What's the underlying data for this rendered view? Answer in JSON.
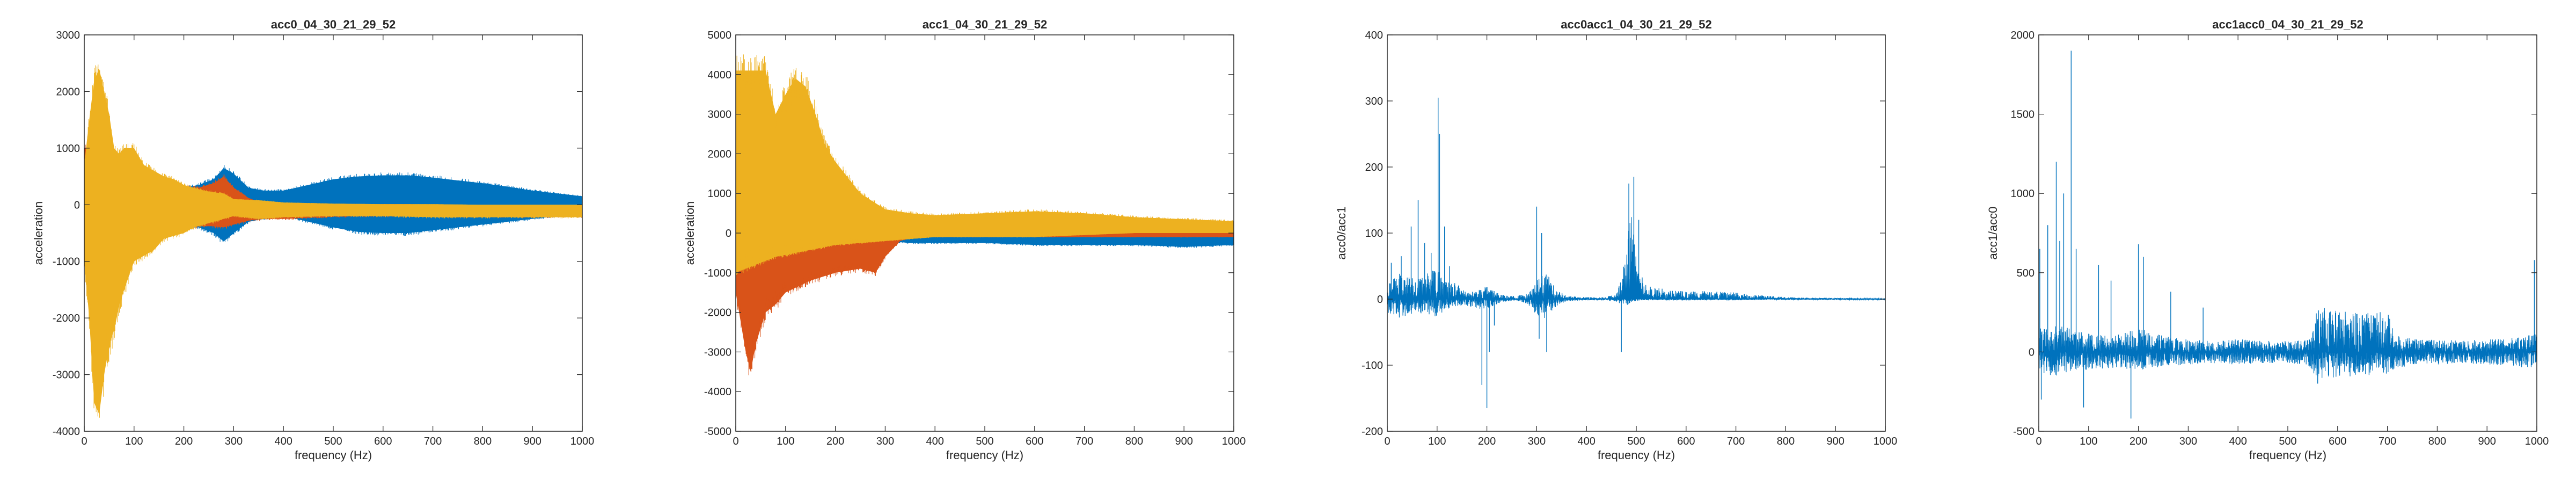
{
  "colors": {
    "blue": "#0072bd",
    "orange": "#d95319",
    "yellow": "#edb120",
    "axis": "#262626",
    "background": "#ffffff"
  },
  "chart_data": [
    {
      "type": "line",
      "title": "acc0_04_30_21_29_52",
      "xlabel": "frequency (Hz)",
      "ylabel": "acceleration",
      "xlim": [
        0,
        1000
      ],
      "ylim": [
        -4000,
        3000
      ],
      "xticks": [
        0,
        100,
        200,
        300,
        400,
        500,
        600,
        700,
        800,
        900,
        1000
      ],
      "yticks": [
        -4000,
        -3000,
        -2000,
        -1000,
        0,
        1000,
        2000,
        3000
      ],
      "grid": false,
      "legend": "none",
      "style": "dense_band",
      "series": [
        {
          "color": "#0072bd",
          "x": [
            0,
            20,
            40,
            60,
            80,
            100,
            130,
            160,
            200,
            230,
            260,
            280,
            300,
            330,
            360,
            400,
            450,
            500,
            550,
            600,
            650,
            700,
            750,
            800,
            850,
            900,
            950,
            1000
          ],
          "upper": [
            800,
            900,
            700,
            600,
            650,
            700,
            400,
            350,
            300,
            350,
            450,
            650,
            550,
            300,
            250,
            250,
            350,
            450,
            500,
            520,
            520,
            480,
            430,
            380,
            320,
            250,
            200,
            150
          ],
          "lower": [
            -800,
            -900,
            -700,
            -600,
            -550,
            -650,
            -500,
            -450,
            -400,
            -400,
            -500,
            -650,
            -500,
            -300,
            -250,
            -200,
            -300,
            -400,
            -480,
            -500,
            -500,
            -450,
            -400,
            -350,
            -300,
            -250,
            -200,
            -150
          ]
        },
        {
          "color": "#d95319",
          "x": [
            0,
            20,
            40,
            60,
            80,
            100,
            130,
            160,
            200,
            230,
            260,
            280,
            300,
            330,
            360,
            400,
            450,
            500,
            550,
            600,
            650,
            700,
            750,
            800,
            850,
            900,
            950,
            1000
          ],
          "upper": [
            1000,
            1000,
            800,
            700,
            700,
            600,
            450,
            380,
            320,
            300,
            380,
            500,
            300,
            120,
            20,
            -60,
            -50,
            -20,
            0,
            10,
            10,
            0,
            -10,
            -20,
            -30,
            -40,
            -50,
            -50
          ],
          "lower": [
            -1000,
            -1000,
            -800,
            -700,
            -600,
            -650,
            -500,
            -450,
            -400,
            -380,
            -380,
            -400,
            -350,
            -280,
            -250,
            -250,
            -230,
            -210,
            -200,
            -200,
            -200,
            -200,
            -210,
            -210,
            -210,
            -210,
            -210,
            -210
          ]
        },
        {
          "color": "#edb120",
          "x": [
            0,
            10,
            20,
            30,
            40,
            50,
            60,
            70,
            80,
            100,
            120,
            140,
            160,
            180,
            200,
            220,
            240,
            260,
            280,
            300,
            350,
            400,
            500,
            600,
            700,
            800,
            900,
            1000
          ],
          "upper": [
            700,
            1500,
            2200,
            2400,
            2000,
            1600,
            1000,
            900,
            1000,
            1000,
            700,
            600,
            500,
            450,
            350,
            300,
            250,
            220,
            200,
            100,
            80,
            40,
            20,
            10,
            10,
            0,
            0,
            0
          ],
          "lower": [
            -1000,
            -2000,
            -3500,
            -3700,
            -3000,
            -2500,
            -2200,
            -1800,
            -1500,
            -1000,
            -900,
            -800,
            -600,
            -550,
            -500,
            -400,
            -350,
            -300,
            -250,
            -200,
            -250,
            -220,
            -200,
            -200,
            -220,
            -220,
            -220,
            -220
          ]
        }
      ]
    },
    {
      "type": "line",
      "title": "acc1_04_30_21_29_52",
      "xlabel": "frequency (Hz)",
      "ylabel": "acceleration",
      "xlim": [
        0,
        1000
      ],
      "ylim": [
        -5000,
        5000
      ],
      "xticks": [
        0,
        100,
        200,
        300,
        400,
        500,
        600,
        700,
        800,
        900,
        1000
      ],
      "yticks": [
        -5000,
        -4000,
        -3000,
        -2000,
        -1000,
        0,
        1000,
        2000,
        3000,
        4000,
        5000
      ],
      "grid": false,
      "legend": "none",
      "style": "dense_band",
      "series": [
        {
          "color": "#0072bd",
          "x": [
            0,
            50,
            100,
            150,
            200,
            250,
            300,
            350,
            400,
            500,
            600,
            700,
            800,
            900,
            1000
          ],
          "upper": [
            300,
            250,
            200,
            150,
            100,
            100,
            100,
            50,
            50,
            0,
            0,
            0,
            100,
            150,
            150
          ],
          "lower": [
            -300,
            -300,
            -250,
            -200,
            -150,
            -150,
            -200,
            -250,
            -250,
            -250,
            -300,
            -300,
            -300,
            -350,
            -300
          ]
        },
        {
          "color": "#d95319",
          "x": [
            0,
            20,
            30,
            40,
            60,
            80,
            100,
            150,
            200,
            250,
            280,
            300,
            330,
            360,
            400,
            500,
            600,
            700,
            800,
            900,
            1000
          ],
          "upper": [
            800,
            600,
            500,
            400,
            200,
            150,
            100,
            50,
            0,
            -100,
            -100,
            0,
            50,
            50,
            50,
            0,
            0,
            0,
            100,
            100,
            100
          ],
          "lower": [
            -1500,
            -3000,
            -3500,
            -2800,
            -2000,
            -1800,
            -1500,
            -1200,
            -1000,
            -900,
            -1000,
            -600,
            -200,
            -100,
            -100,
            -100,
            -100,
            -100,
            -100,
            -100,
            -100
          ]
        },
        {
          "color": "#edb120",
          "x": [
            0,
            20,
            40,
            60,
            80,
            100,
            120,
            140,
            160,
            180,
            200,
            250,
            300,
            350,
            400,
            500,
            600,
            700,
            800,
            900,
            1000
          ],
          "upper": [
            4100,
            4100,
            4100,
            4100,
            3000,
            3500,
            3900,
            3700,
            3000,
            2200,
            1800,
            1000,
            600,
            500,
            450,
            500,
            550,
            500,
            400,
            350,
            300
          ],
          "lower": [
            -1000,
            -900,
            -800,
            -700,
            -600,
            -550,
            -500,
            -450,
            -400,
            -350,
            -300,
            -250,
            -200,
            -150,
            -100,
            -100,
            -100,
            -50,
            0,
            0,
            0
          ]
        }
      ]
    },
    {
      "type": "line",
      "title": "acc0acc1_04_30_21_29_52",
      "xlabel": "frequency (Hz)",
      "ylabel": "acc0/acc1",
      "xlim": [
        0,
        1000
      ],
      "ylim": [
        -200,
        400
      ],
      "xticks": [
        0,
        100,
        200,
        300,
        400,
        500,
        600,
        700,
        800,
        900,
        1000
      ],
      "yticks": [
        -200,
        -100,
        0,
        100,
        200,
        300,
        400
      ],
      "grid": false,
      "legend": "none",
      "style": "noise_spikes",
      "series": [
        {
          "color": "#0072bd",
          "x": [
            0,
            20,
            40,
            60,
            80,
            100,
            120,
            140,
            160,
            180,
            200,
            220,
            240,
            260,
            280,
            300,
            320,
            340,
            360,
            400,
            440,
            460,
            470,
            480,
            490,
            500,
            520,
            560,
            600,
            650,
            700,
            750,
            800,
            850,
            900,
            950,
            1000
          ],
          "upper": [
            20,
            40,
            35,
            30,
            40,
            50,
            25,
            25,
            10,
            15,
            20,
            10,
            5,
            5,
            10,
            30,
            40,
            15,
            5,
            3,
            3,
            10,
            30,
            90,
            130,
            60,
            20,
            15,
            12,
            12,
            10,
            6,
            3,
            2,
            2,
            1,
            1
          ],
          "lower": [
            -20,
            -30,
            -25,
            -20,
            -25,
            -30,
            -15,
            -10,
            -10,
            -15,
            -15,
            -8,
            -3,
            -3,
            -8,
            -25,
            -30,
            -10,
            -3,
            -2,
            -2,
            -5,
            -8,
            -10,
            -5,
            -3,
            -2,
            -2,
            -2,
            -2,
            -2,
            -1,
            -1,
            -1,
            -1,
            -1,
            -1
          ],
          "spikes": [
            {
              "x": 8,
              "y": 55
            },
            {
              "x": 28,
              "y": 65
            },
            {
              "x": 48,
              "y": 110
            },
            {
              "x": 62,
              "y": 150
            },
            {
              "x": 75,
              "y": 85
            },
            {
              "x": 88,
              "y": 70
            },
            {
              "x": 102,
              "y": 305
            },
            {
              "x": 105,
              "y": 250
            },
            {
              "x": 115,
              "y": 110
            },
            {
              "x": 125,
              "y": 50
            },
            {
              "x": 190,
              "y": -130
            },
            {
              "x": 200,
              "y": -165
            },
            {
              "x": 205,
              "y": -80
            },
            {
              "x": 215,
              "y": -40
            },
            {
              "x": 300,
              "y": 140
            },
            {
              "x": 310,
              "y": 100
            },
            {
              "x": 320,
              "y": -80
            },
            {
              "x": 305,
              "y": -60
            },
            {
              "x": 470,
              "y": -80
            },
            {
              "x": 485,
              "y": 175
            },
            {
              "x": 495,
              "y": 185
            },
            {
              "x": 505,
              "y": 120
            }
          ]
        }
      ]
    },
    {
      "type": "line",
      "title": "acc1acc0_04_30_21_29_52",
      "xlabel": "frequency (Hz)",
      "ylabel": "acc1/acc0",
      "xlim": [
        0,
        1000
      ],
      "ylim": [
        -500,
        2000
      ],
      "xticks": [
        0,
        100,
        200,
        300,
        400,
        500,
        600,
        700,
        800,
        900,
        1000
      ],
      "yticks": [
        -500,
        0,
        500,
        1000,
        1500,
        2000
      ],
      "grid": false,
      "legend": "none",
      "style": "noise_spikes",
      "series": [
        {
          "color": "#0072bd",
          "x": [
            0,
            30,
            60,
            100,
            150,
            200,
            250,
            300,
            350,
            400,
            450,
            500,
            540,
            560,
            600,
            650,
            700,
            720,
            760,
            800,
            850,
            900,
            950,
            1000
          ],
          "upper": [
            150,
            180,
            150,
            120,
            100,
            150,
            100,
            80,
            70,
            80,
            70,
            70,
            80,
            280,
            270,
            260,
            250,
            100,
            80,
            80,
            70,
            80,
            90,
            120
          ],
          "lower": [
            -150,
            -160,
            -130,
            -110,
            -100,
            -120,
            -90,
            -80,
            -70,
            -80,
            -70,
            -70,
            -80,
            -170,
            -160,
            -150,
            -140,
            -100,
            -80,
            -80,
            -70,
            -80,
            -90,
            -110
          ],
          "spikes": [
            {
              "x": 2,
              "y": 650
            },
            {
              "x": 5,
              "y": -300
            },
            {
              "x": 18,
              "y": 800
            },
            {
              "x": 35,
              "y": 1200
            },
            {
              "x": 42,
              "y": 700
            },
            {
              "x": 50,
              "y": 1000
            },
            {
              "x": 65,
              "y": 1900
            },
            {
              "x": 75,
              "y": 650
            },
            {
              "x": 90,
              "y": -350
            },
            {
              "x": 120,
              "y": 550
            },
            {
              "x": 145,
              "y": 450
            },
            {
              "x": 185,
              "y": -420
            },
            {
              "x": 200,
              "y": 680
            },
            {
              "x": 210,
              "y": 600
            },
            {
              "x": 265,
              "y": 380
            },
            {
              "x": 330,
              "y": 280
            },
            {
              "x": 560,
              "y": -200
            },
            {
              "x": 995,
              "y": 580
            }
          ]
        }
      ]
    }
  ]
}
